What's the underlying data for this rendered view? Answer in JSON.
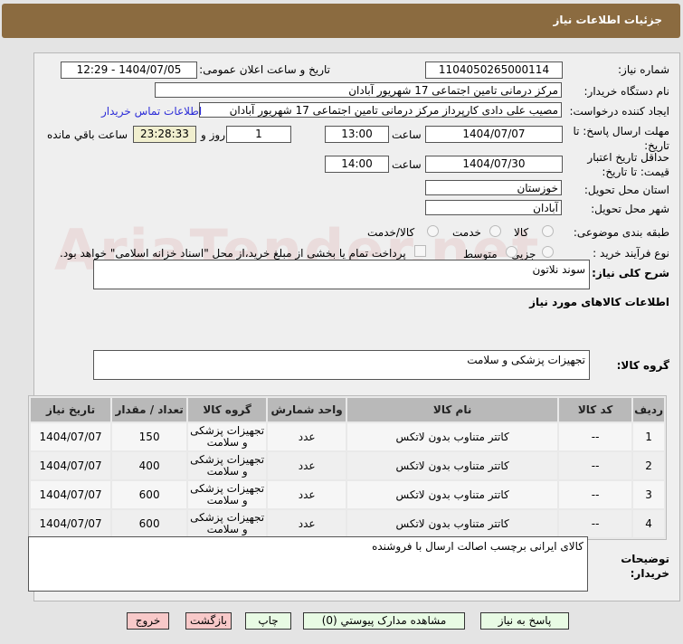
{
  "header": {
    "title": "جزئیات اطلاعات نیاز"
  },
  "watermark": "AriaTender.net",
  "form": {
    "need_number_label": "شماره نیاز:",
    "need_number": "1104050265000114",
    "announce_label": "تاریخ و ساعت اعلان عمومی:",
    "announce_value": "1404/07/05 - 12:29",
    "buyer_org_label": "نام دستگاه خریدار:",
    "buyer_org": "مرکز درمانی تامین اجتماعی 17 شهریور آبادان",
    "creator_label": "ایجاد کننده درخواست:",
    "creator": "مصیب علی دادی کارپرداز مرکز درمانی تامین اجتماعی 17 شهریور آبادان",
    "contact_link": "اطلاعات تماس خریدار",
    "deadline_label": "مهلت ارسال پاسخ: تا تاریخ:",
    "deadline_date": "1404/07/07",
    "time_label": "ساعت",
    "deadline_time": "13:00",
    "days": "1",
    "days_label": "روز و",
    "remaining": "23:28:33",
    "remaining_label": "ساعت باقي مانده",
    "validity_label": "حداقل تاریخ اعتبار قیمت: تا تاریخ:",
    "validity_date": "1404/07/30",
    "validity_time": "14:00",
    "province_label": "استان محل تحویل:",
    "province": "خوزستان",
    "city_label": "شهر محل تحویل:",
    "city": "آبادان",
    "category_label": "طبقه بندی موضوعی:",
    "category_options": [
      "کالا",
      "خدمت",
      "کالا/خدمت"
    ],
    "process_label": "نوع فرآیند خرید :",
    "process_options": [
      "جزیی",
      "متوسط"
    ],
    "payment_note": "پرداخت تمام یا بخشی از مبلغ خرید،از محل \"اسناد خزانه اسلامی\" خواهد بود.",
    "description_label": "شرح کلی نیاز:",
    "description": "سوند نلاتون",
    "goods_info_title": "اطلاعات کالاهای مورد نیاز",
    "goods_group_label": "گروه کالا:",
    "goods_group": "تجهیزات پزشکی و سلامت"
  },
  "table": {
    "headers": [
      "ردیف",
      "کد کالا",
      "نام کالا",
      "واحد شمارش",
      "گروه کالا",
      "تعداد / مقدار",
      "تاریخ نیاز"
    ],
    "rows": [
      [
        "1",
        "--",
        "کاتتر متناوب بدون لاتکس",
        "عدد",
        "تجهیزات پزشکی و سلامت",
        "150",
        "1404/07/07"
      ],
      [
        "2",
        "--",
        "کاتتر متناوب بدون لاتکس",
        "عدد",
        "تجهیزات پزشکی و سلامت",
        "400",
        "1404/07/07"
      ],
      [
        "3",
        "--",
        "کاتتر متناوب بدون لاتکس",
        "عدد",
        "تجهیزات پزشکی و سلامت",
        "600",
        "1404/07/07"
      ],
      [
        "4",
        "--",
        "کاتتر متناوب بدون لاتکس",
        "عدد",
        "تجهیزات پزشکی و سلامت",
        "600",
        "1404/07/07"
      ]
    ]
  },
  "buyer_notes": {
    "label": "توضیحات خریدار:",
    "value": "کالای ایرانی برچسب اصالت ارسال با فروشنده"
  },
  "buttons": {
    "reply": "پاسخ به نیاز",
    "attachments": "مشاهده مدارک پیوستي (0)",
    "print": "چاپ",
    "back": "بازگشت",
    "exit": "خروج"
  }
}
